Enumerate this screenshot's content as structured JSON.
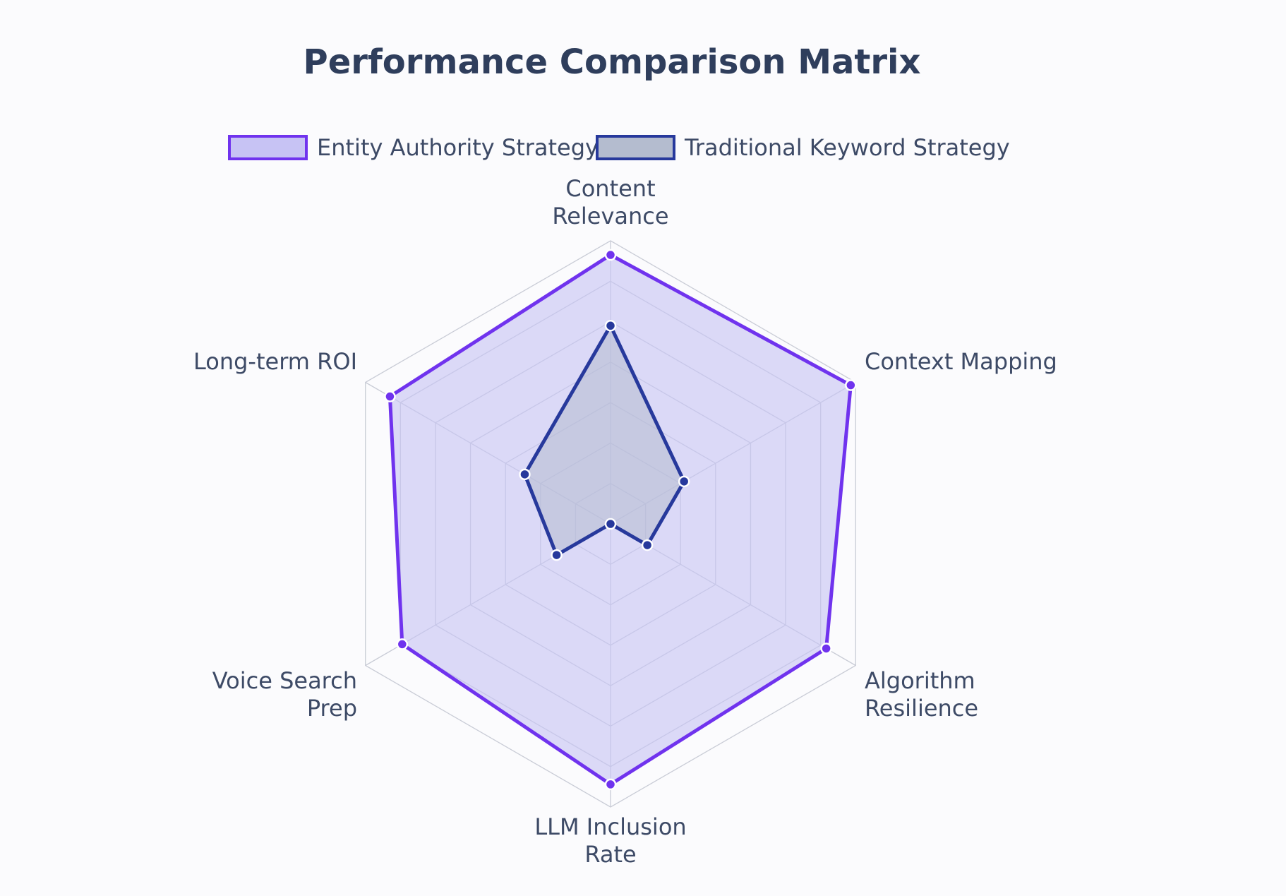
{
  "chart_data": {
    "type": "radar",
    "title": "Performance Comparison Matrix",
    "axes": [
      [
        "Content",
        "Relevance"
      ],
      [
        "Context Mapping"
      ],
      [
        "Algorithm",
        "Resilience"
      ],
      [
        "LLM Inclusion",
        "Rate"
      ],
      [
        "Voice Search",
        "Prep"
      ],
      [
        "Long-term ROI"
      ]
    ],
    "rlim": [
      0,
      100
    ],
    "rings": 7,
    "legend_position": "top",
    "series": [
      {
        "name": "Entity Authority Strategy",
        "values": [
          95,
          98,
          88,
          92,
          85,
          90
        ],
        "stroke": "#7033ee",
        "fill": "#c7c3f4",
        "point_fill": "#7033ee"
      },
      {
        "name": "Traditional Keyword Strategy",
        "values": [
          70,
          30,
          15,
          0,
          22,
          35
        ],
        "stroke": "#27399c",
        "fill": "#b4bccf",
        "point_fill": "#27399c"
      }
    ]
  },
  "colors": {
    "grid": "#c9ccd6",
    "title": "#2f3e5c",
    "text": "#3d4a66"
  }
}
